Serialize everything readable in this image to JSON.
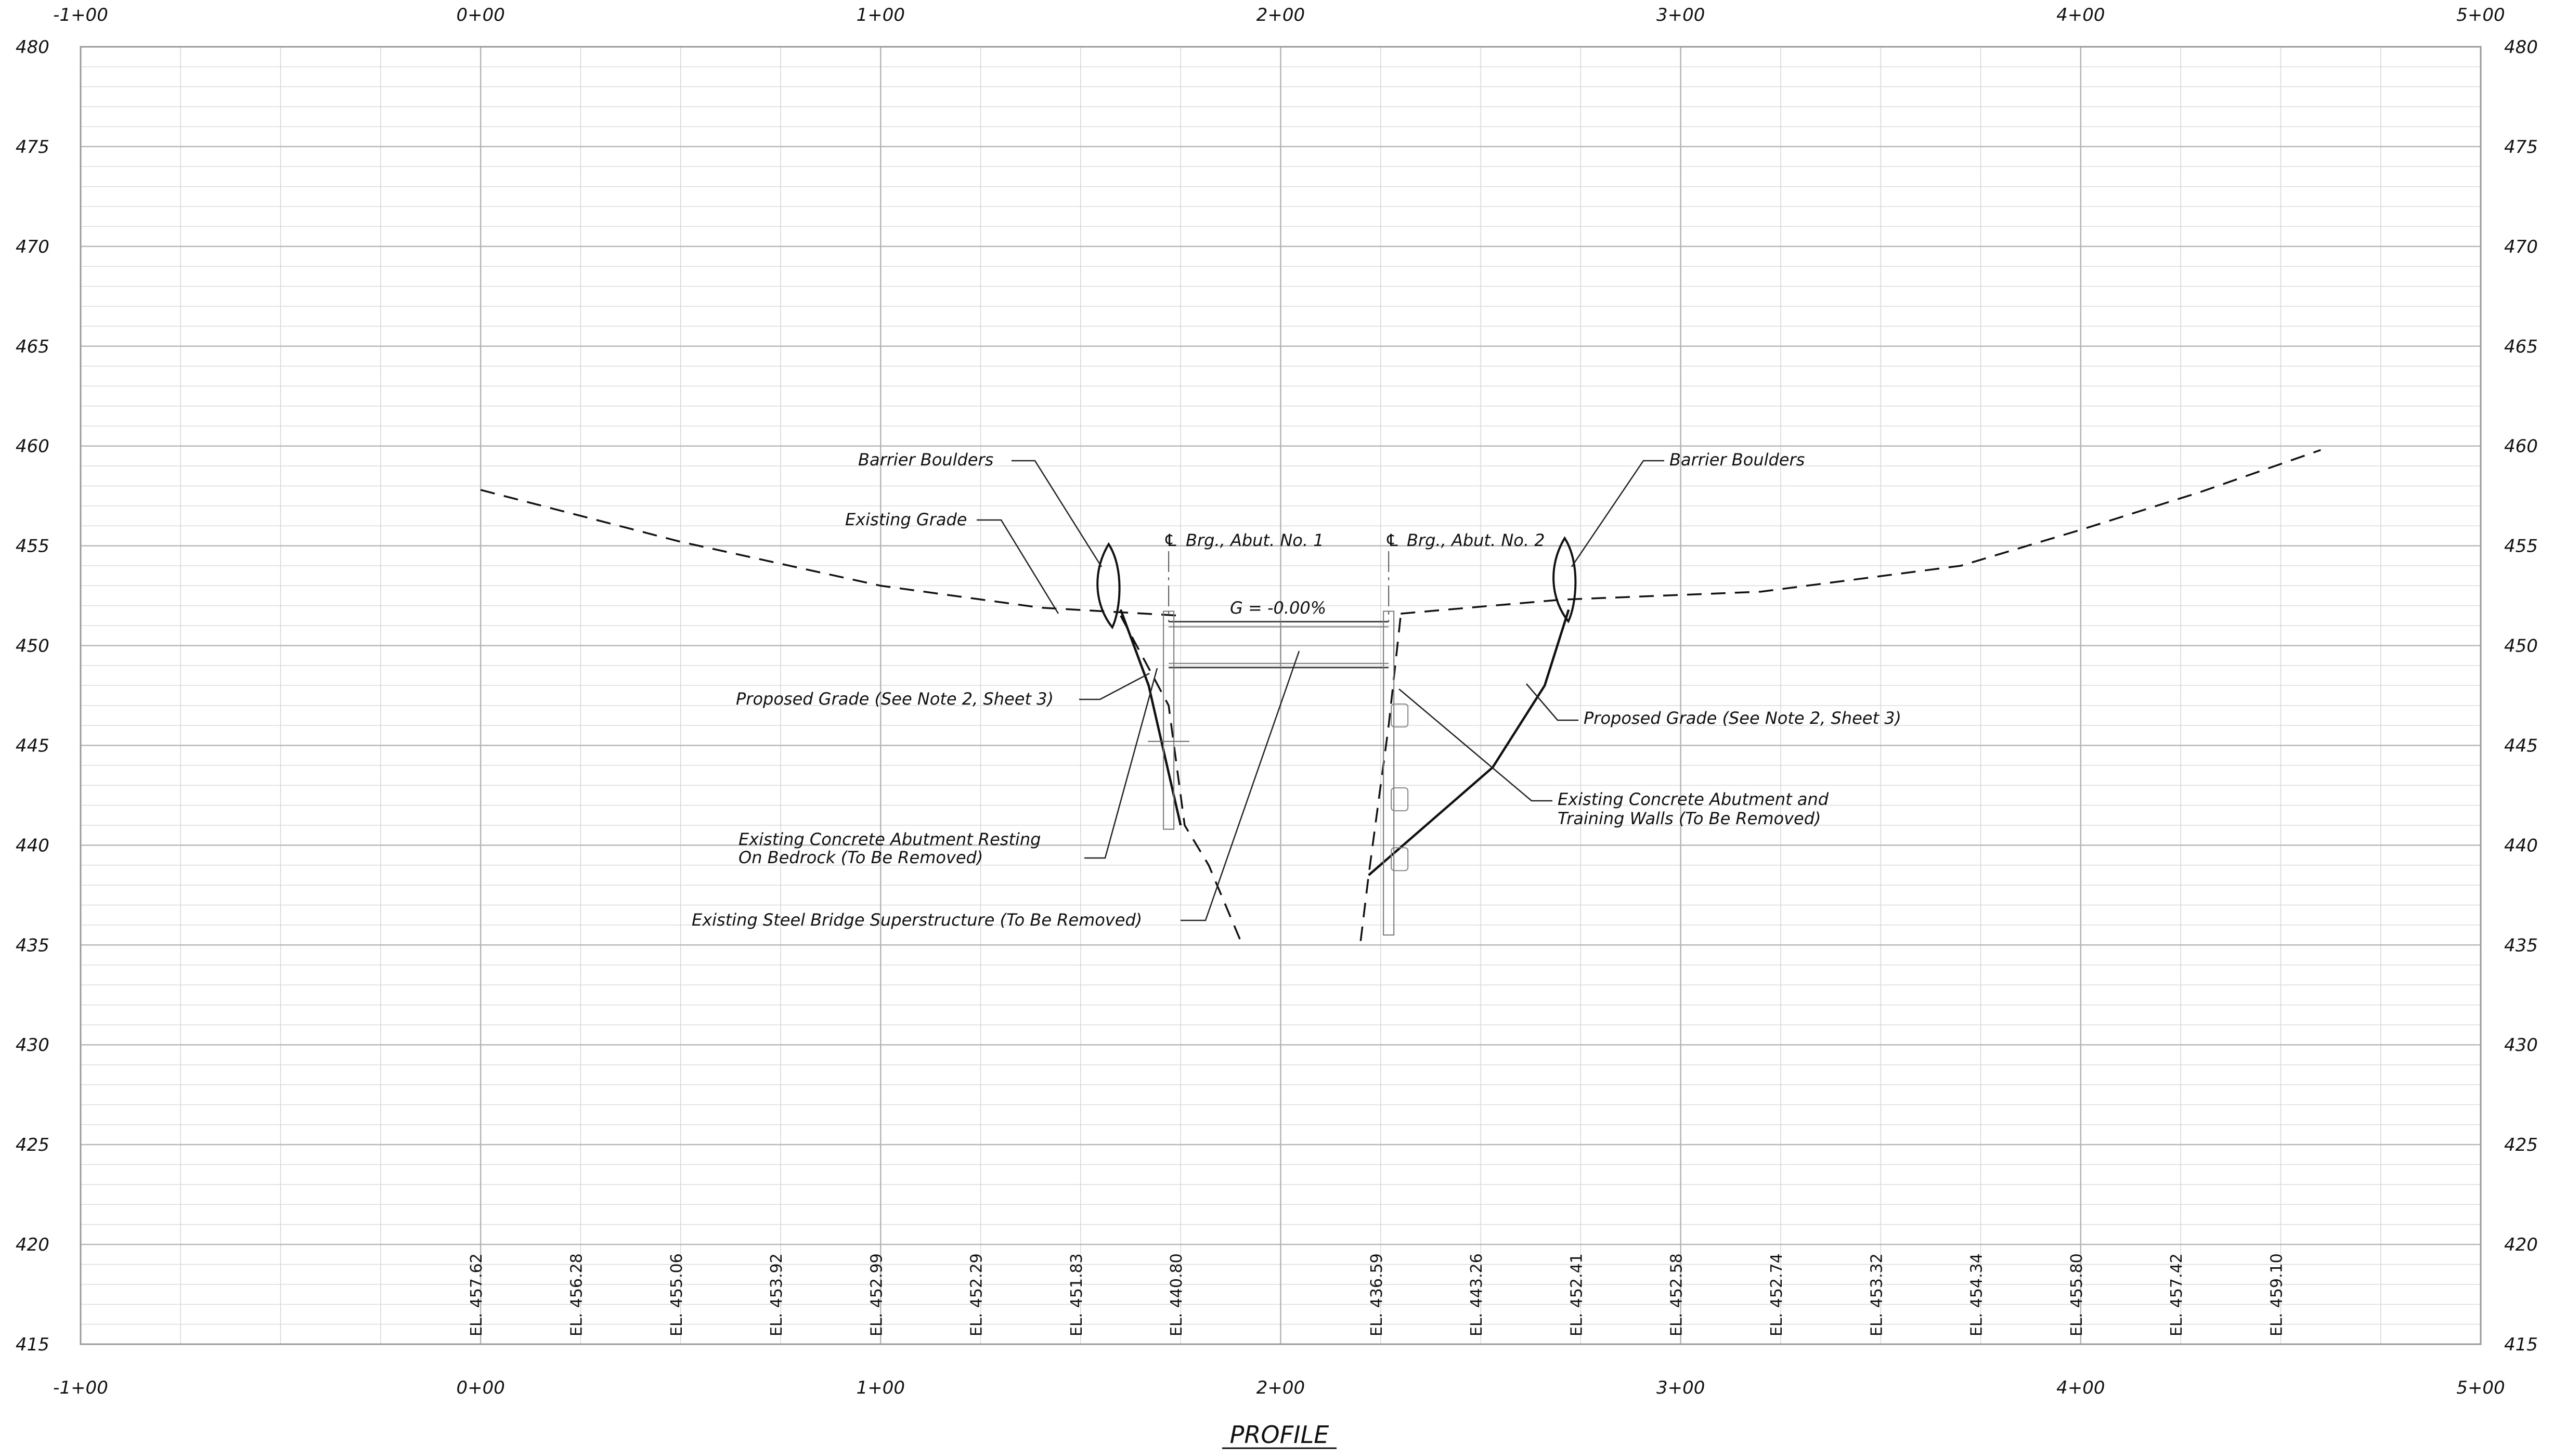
{
  "title": "PROFILE",
  "station_labels": [
    "-1+00",
    "0+00",
    "1+00",
    "2+00",
    "3+00",
    "4+00",
    "5+00"
  ],
  "elevation_labels": [
    "480",
    "475",
    "470",
    "465",
    "460",
    "455",
    "450",
    "445",
    "440",
    "435",
    "430",
    "425",
    "420",
    "415"
  ],
  "grade_label": "G = -0.00%",
  "centerline_labels": {
    "abut1": "Brg., Abut. No. 1",
    "abut2": "Brg., Abut. No. 2"
  },
  "notes": {
    "barrier_left": "Barrier Boulders",
    "existing_grade": "Existing Grade",
    "proposed_grade_left": "Proposed Grade (See Note 2, Sheet 3)",
    "existing_abutment_left_1": "Existing Concrete Abutment Resting",
    "existing_abutment_left_2": "On Bedrock (To Be Removed)",
    "steel_superstructure": "Existing Steel Bridge Superstructure (To Be Removed)",
    "barrier_right": "Barrier Boulders",
    "proposed_grade_right": "Proposed Grade (See Note 2, Sheet 3)",
    "existing_abutment_right_1": "Existing Concrete Abutment and",
    "existing_abutment_right_2": "Training Walls (To Be Removed)"
  },
  "elevation_callouts": [
    {
      "station": 0.0,
      "label": "EL. 457.62"
    },
    {
      "station": 0.25,
      "label": "EL. 456.28"
    },
    {
      "station": 0.5,
      "label": "EL. 455.06"
    },
    {
      "station": 0.75,
      "label": "EL. 453.92"
    },
    {
      "station": 1.0,
      "label": "EL. 452.99"
    },
    {
      "station": 1.25,
      "label": "EL. 452.29"
    },
    {
      "station": 1.5,
      "label": "EL. 451.83"
    },
    {
      "station": 1.75,
      "label": "EL. 440.80"
    },
    {
      "station": 2.25,
      "label": "EL. 436.59"
    },
    {
      "station": 2.5,
      "label": "EL. 443.26"
    },
    {
      "station": 2.75,
      "label": "EL. 452.41"
    },
    {
      "station": 3.0,
      "label": "EL. 452.58"
    },
    {
      "station": 3.25,
      "label": "EL. 452.74"
    },
    {
      "station": 3.5,
      "label": "EL. 453.32"
    },
    {
      "station": 3.75,
      "label": "EL. 454.34"
    },
    {
      "station": 4.0,
      "label": "EL. 455.80"
    },
    {
      "station": 4.25,
      "label": "EL. 457.42"
    },
    {
      "station": 4.5,
      "label": "EL. 459.10"
    }
  ],
  "existing_grade_left": [
    [
      0.0,
      457.8
    ],
    [
      0.5,
      455.2
    ],
    [
      1.0,
      453.0
    ],
    [
      1.4,
      451.9
    ],
    [
      1.75,
      451.5
    ]
  ],
  "existing_grade_right": [
    [
      2.3,
      451.6
    ],
    [
      2.7,
      452.3
    ],
    [
      3.2,
      452.7
    ],
    [
      3.7,
      454.0
    ],
    [
      4.0,
      455.8
    ],
    [
      4.3,
      457.7
    ],
    [
      4.6,
      459.8
    ]
  ],
  "existing_bank_left": [
    [
      1.6,
      451.5
    ],
    [
      1.72,
      447.0
    ],
    [
      1.76,
      441.0
    ],
    [
      1.82,
      439.0
    ],
    [
      1.9,
      435.2
    ]
  ],
  "existing_bank_right": [
    [
      2.2,
      435.2
    ],
    [
      2.22,
      438.5
    ],
    [
      2.27,
      446.0
    ],
    [
      2.3,
      451.5
    ]
  ],
  "proposed_grade_left": [
    [
      1.6,
      451.8
    ],
    [
      1.67,
      448.0
    ],
    [
      1.75,
      441.0
    ]
  ],
  "proposed_grade_right": [
    [
      2.22,
      438.5
    ],
    [
      2.53,
      443.9
    ],
    [
      2.66,
      448.0
    ],
    [
      2.72,
      451.8
    ]
  ],
  "boulder_left": {
    "station": 1.57,
    "elevation": 453.0
  },
  "boulder_right": {
    "station": 2.71,
    "elevation": 453.3
  },
  "abutment_left_station": 1.72,
  "abutment_right_station": 2.27,
  "deck_top_elevation": 451.2,
  "deck_bottom_elevation": 448.9
}
